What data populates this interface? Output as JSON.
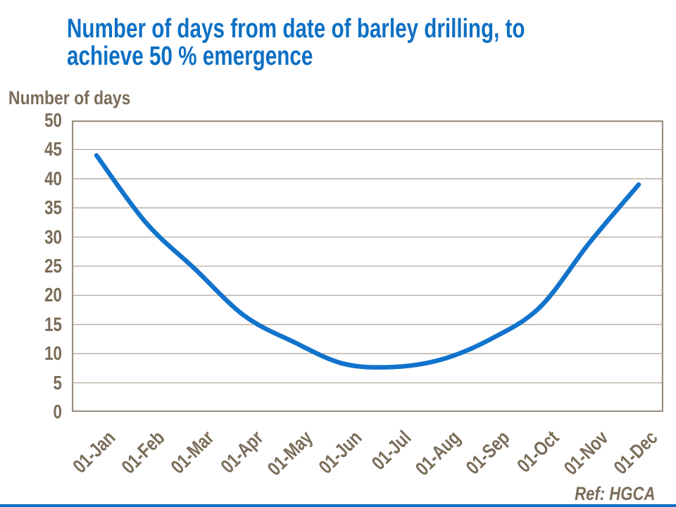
{
  "slide": {
    "title": "Number of days from date of barley drilling, to\nachieve 50 % emergence",
    "ref_note": "Ref: HGCA"
  },
  "colors": {
    "background": "#FFFFFF",
    "title_blue": "#0D70C4",
    "line_blue": "#1173CC",
    "text_brown": "#7B6C59",
    "grid_line": "#B5AB9D",
    "plot_border": "#9C9184",
    "accent_bar": "#0D70C4"
  },
  "chart_data": {
    "type": "line",
    "title": "Number of days from date of barley drilling, to achieve 50 % emergence",
    "y_axis_title": "Number of days",
    "categories": [
      "01-Jan",
      "01-Feb",
      "01-Mar",
      "01-Apr",
      "01-May",
      "01-Jun",
      "01-Jul",
      "01-Aug",
      "01-Sep",
      "01-Oct",
      "01-Nov",
      "01-Dec"
    ],
    "values": [
      44,
      32.5,
      24.5,
      16.5,
      12,
      8.3,
      7.7,
      9,
      12.5,
      18,
      29,
      39
    ],
    "ylim": [
      0,
      50
    ],
    "y_ticks": [
      0,
      5,
      10,
      15,
      20,
      25,
      30,
      35,
      40,
      45,
      50
    ],
    "grid": "horizontal",
    "legend": "none",
    "annotations": [
      "Ref: HGCA"
    ]
  }
}
